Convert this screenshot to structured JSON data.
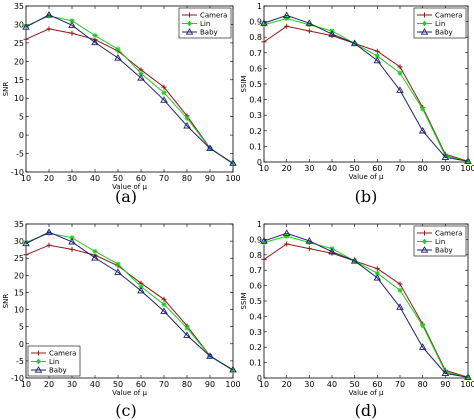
{
  "colors": {
    "camera": "#8b1a1a",
    "lin": "#22cc22",
    "baby": "#1f1f6e"
  },
  "chart_data": [
    {
      "type": "line",
      "caption": "(a)",
      "xlabel": "Value of μ",
      "ylabel": "SNR",
      "xlim": [
        10,
        100
      ],
      "ylim": [
        -10,
        35
      ],
      "x_ticks": [
        10,
        20,
        30,
        40,
        50,
        60,
        70,
        80,
        90,
        100
      ],
      "y_ticks": [
        -10,
        -5,
        0,
        5,
        10,
        15,
        20,
        25,
        30,
        35
      ],
      "legend_position": "top-right",
      "x": [
        10,
        20,
        30,
        40,
        50,
        60,
        70,
        80,
        90,
        100
      ],
      "series": [
        {
          "name": "Camera",
          "color": "#8b1a1a",
          "marker": "plus",
          "values": [
            26,
            28.8,
            27.6,
            25.9,
            22.8,
            17.7,
            13,
            5.2,
            -3.5,
            -7.8
          ]
        },
        {
          "name": "Lin",
          "color": "#22cc22",
          "marker": "star",
          "values": [
            29.6,
            32.3,
            31,
            27,
            23.3,
            16.7,
            11.5,
            4.6,
            -3.6,
            -7.8
          ]
        },
        {
          "name": "Baby",
          "color": "#1f1f6e",
          "marker": "triangle",
          "values": [
            29.3,
            32.6,
            29.8,
            25.1,
            20.9,
            15.5,
            9.5,
            2.5,
            -3.6,
            -7.6
          ]
        }
      ]
    },
    {
      "type": "line",
      "caption": "(b)",
      "xlabel": "Value of μ",
      "ylabel": "SSIM",
      "xlim": [
        10,
        100
      ],
      "ylim": [
        0,
        1
      ],
      "x_ticks": [
        10,
        20,
        30,
        40,
        50,
        60,
        70,
        80,
        90,
        100
      ],
      "y_ticks": [
        0,
        0.1,
        0.2,
        0.3,
        0.4,
        0.5,
        0.6,
        0.7,
        0.8,
        0.9,
        1
      ],
      "legend_position": "top-right",
      "x": [
        10,
        20,
        30,
        40,
        50,
        60,
        70,
        80,
        90,
        100
      ],
      "series": [
        {
          "name": "Camera",
          "color": "#8b1a1a",
          "marker": "plus",
          "values": [
            0.77,
            0.87,
            0.84,
            0.81,
            0.76,
            0.71,
            0.61,
            0.35,
            0.05,
            0.005
          ]
        },
        {
          "name": "Lin",
          "color": "#22cc22",
          "marker": "star",
          "values": [
            0.88,
            0.92,
            0.88,
            0.84,
            0.76,
            0.68,
            0.57,
            0.34,
            0.04,
            0.005
          ]
        },
        {
          "name": "Baby",
          "color": "#1f1f6e",
          "marker": "triangle",
          "values": [
            0.89,
            0.94,
            0.89,
            0.82,
            0.76,
            0.65,
            0.46,
            0.2,
            0.03,
            0.005
          ]
        }
      ]
    },
    {
      "type": "line",
      "caption": "(c)",
      "xlabel": "Value of μ",
      "ylabel": "SNR",
      "xlim": [
        10,
        100
      ],
      "ylim": [
        -10,
        35
      ],
      "x_ticks": [
        10,
        20,
        30,
        40,
        50,
        60,
        70,
        80,
        90,
        100
      ],
      "y_ticks": [
        -10,
        -5,
        0,
        5,
        10,
        15,
        20,
        25,
        30,
        35
      ],
      "legend_position": "bottom-left",
      "x": [
        10,
        20,
        30,
        40,
        50,
        60,
        70,
        80,
        90,
        100
      ],
      "series": [
        {
          "name": "Camera",
          "color": "#8b1a1a",
          "marker": "plus",
          "values": [
            26,
            28.8,
            27.6,
            25.9,
            22.8,
            17.7,
            13,
            5.2,
            -3.5,
            -7.8
          ]
        },
        {
          "name": "Lin",
          "color": "#22cc22",
          "marker": "star",
          "values": [
            29.6,
            32.3,
            31,
            27,
            23.3,
            16.7,
            11.5,
            4.6,
            -3.6,
            -7.8
          ]
        },
        {
          "name": "Baby",
          "color": "#1f1f6e",
          "marker": "triangle",
          "values": [
            29.3,
            32.6,
            29.8,
            25.1,
            20.9,
            15.5,
            9.5,
            2.5,
            -3.6,
            -7.6
          ]
        }
      ]
    },
    {
      "type": "line",
      "caption": "(d)",
      "xlabel": "Value of μ",
      "ylabel": "SSIM",
      "xlim": [
        10,
        100
      ],
      "ylim": [
        0,
        1
      ],
      "x_ticks": [
        10,
        20,
        30,
        40,
        50,
        60,
        70,
        80,
        90,
        100
      ],
      "y_ticks": [
        0,
        0.1,
        0.2,
        0.3,
        0.4,
        0.5,
        0.6,
        0.7,
        0.8,
        0.9,
        1
      ],
      "legend_position": "top-right",
      "x": [
        10,
        20,
        30,
        40,
        50,
        60,
        70,
        80,
        90,
        100
      ],
      "series": [
        {
          "name": "Camera",
          "color": "#8b1a1a",
          "marker": "plus",
          "values": [
            0.77,
            0.87,
            0.84,
            0.81,
            0.76,
            0.71,
            0.61,
            0.35,
            0.05,
            0.005
          ]
        },
        {
          "name": "Lin",
          "color": "#22cc22",
          "marker": "star",
          "values": [
            0.88,
            0.92,
            0.88,
            0.84,
            0.76,
            0.68,
            0.57,
            0.34,
            0.04,
            0.005
          ]
        },
        {
          "name": "Baby",
          "color": "#1f1f6e",
          "marker": "triangle",
          "values": [
            0.89,
            0.94,
            0.89,
            0.82,
            0.76,
            0.65,
            0.46,
            0.2,
            0.03,
            0.005
          ]
        }
      ]
    }
  ]
}
